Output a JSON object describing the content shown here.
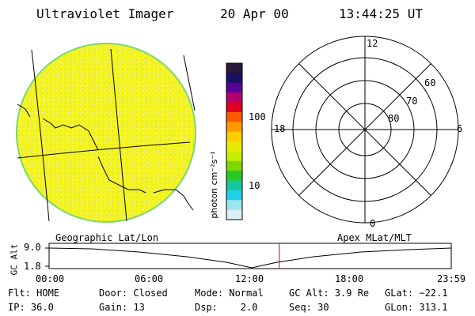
{
  "header": {
    "instrument": "Ultraviolet Imager",
    "date": "20 Apr 00",
    "time": "13:44:25 UT"
  },
  "colorbar": {
    "label": "photon cm⁻²s⁻¹",
    "ticks": [
      "100",
      "10"
    ],
    "colors": [
      "#2a1a3a",
      "#1a1066",
      "#5a009a",
      "#b4006a",
      "#e00020",
      "#ff5a00",
      "#ff9a00",
      "#ffcc00",
      "#eaea00",
      "#c6ee00",
      "#7ad800",
      "#26c826",
      "#16c8a0",
      "#20d0e6",
      "#9ae6ef",
      "#dceff2"
    ]
  },
  "polar_plot": {
    "hours": [
      "12",
      "18",
      "6",
      "0"
    ],
    "lats": [
      "60",
      "70",
      "80"
    ]
  },
  "timeline": {
    "axis_label": "GC Alt",
    "y_ticks": [
      "9.0",
      "1.8"
    ],
    "left_title": "Geographic Lat/Lon",
    "right_title": "Apex MLat/MLT",
    "x_ticks": [
      "00:00",
      "06:00",
      "12:00",
      "18:00",
      "23:59"
    ],
    "current_time_hours": 13.74
  },
  "info": {
    "row1": [
      "Flt: HOME",
      "Door: Closed",
      "Mode: Normal",
      "GC Alt: 3.9 Re",
      "GLat: −22.1"
    ],
    "row2": [
      "IP: 36.0",
      "Gain: 13",
      "Dsp:    2.0",
      "Seq: 30",
      "GLon: 313.1"
    ]
  },
  "colors": {
    "disk_fill": "#f2f21e",
    "disk_edge": "#7ad96a",
    "time_marker": "#cc0000"
  }
}
